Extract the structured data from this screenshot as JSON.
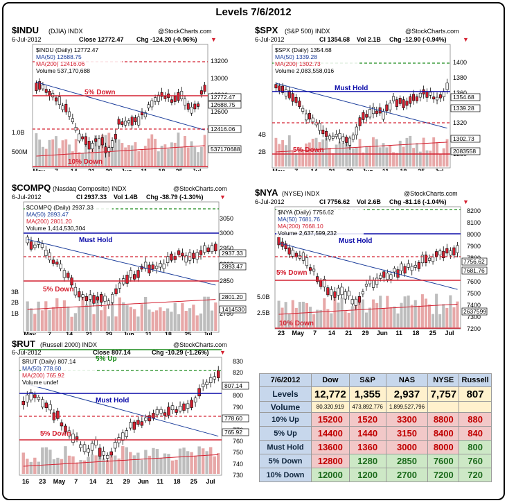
{
  "title": "Levels 7/6/2012",
  "watermark": "@StockCharts.com",
  "colors": {
    "up": "#ffffff",
    "down": "#d42030",
    "ma50": "#1a3c9a",
    "ma200": "#d42030",
    "level_red": "#d42030",
    "level_blue": "#0a0aa8",
    "level_green": "#1a8a1a",
    "volume": "#e7a7a7"
  },
  "charts": {
    "indu": {
      "symbol": "$INDU",
      "name": "(DJIA) INDX",
      "date": "6-Jul-2012",
      "close_label": "Close 12772.47",
      "chg_label": "Chg -124.20 (-0.96%)",
      "legend_main": "$INDU (Daily) 12772.47",
      "legend_ma50": "MA(50) 12688.75",
      "legend_ma200": "MA(200) 12416.06",
      "legend_vol": "Volume 537,170,688",
      "y_ticks": [
        "13200",
        "13000",
        "12800",
        "12600"
      ],
      "vol_ticks": [
        "1.0B",
        "500M"
      ],
      "price_boxes": [
        "12772.47",
        "12688.75",
        "12416.06",
        "537170688"
      ],
      "x_ticks": [
        "May",
        "7",
        "14",
        "21",
        "29",
        "Jun",
        "11",
        "18",
        "25",
        "Jul"
      ],
      "level_labels": [
        "5% Down",
        "10% Down"
      ]
    },
    "spx": {
      "symbol": "$SPX",
      "name": "(S&P 500) INDX",
      "date": "6-Jul-2012",
      "close_label": "Cl 1354.68",
      "vol_label": "Vol 2.1B",
      "chg_label": "Chg -12.90 (-0.94%)",
      "legend_main": "$SPX (Daily) 1354.68",
      "legend_ma50": "MA(50) 1339.28",
      "legend_ma200": "MA(200) 1302.73",
      "legend_vol": "Volume 2,083,558,016",
      "y_ticks": [
        "1400",
        "1380",
        "1360",
        "1340",
        "1320",
        "1280"
      ],
      "vol_ticks": [
        "4B",
        "2B"
      ],
      "price_boxes": [
        "1354.68",
        "1339.28",
        "1302.73",
        "2083558"
      ],
      "x_ticks": [
        "May",
        "7",
        "14",
        "21",
        "29",
        "Jun",
        "11",
        "18",
        "25",
        "Jul"
      ],
      "level_labels": [
        "Must Hold",
        "5% Down"
      ]
    },
    "compq": {
      "symbol": "$COMPQ",
      "name": "(Nasdaq Composite) INDX",
      "date": "6-Jul-2012",
      "close_label": "Cl 2937.33",
      "vol_label": "Vol 1.4B",
      "chg_label": "Chg -38.79 (-1.30%)",
      "legend_main": "$COMPQ (Daily) 2937.33",
      "legend_ma50": "MA(50) 2893.47",
      "legend_ma200": "MA(200) 2801.20",
      "legend_vol": "Volume 1,414,530,304",
      "y_ticks": [
        "3050",
        "3000",
        "2950",
        "2900",
        "2850",
        "2750"
      ],
      "vol_ticks": [
        "3B",
        "2B",
        "1B"
      ],
      "price_boxes": [
        "2937.33",
        "2893.47",
        "2801.20",
        "1414530"
      ],
      "x_ticks": [
        "May",
        "7",
        "14",
        "21",
        "29",
        "Jun",
        "11",
        "18",
        "25",
        "Jul"
      ],
      "level_labels": [
        "Must Hold",
        "5% Down"
      ]
    },
    "nya": {
      "symbol": "$NYA",
      "name": "(NYSE) INDX",
      "date": "6-Jul-2012",
      "close_label": "Cl 7756.62",
      "vol_label": "Vol 2.6B",
      "chg_label": "Chg -81.16 (-1.04%)",
      "legend_main": "$NYA (Daily) 7756.62",
      "legend_ma50": "MA(50) 7681.76",
      "legend_ma200": "MA(200) 7668.10",
      "legend_vol": "Volume 2,637,599,232",
      "y_ticks": [
        "8200",
        "8100",
        "8000",
        "7900",
        "7800",
        "7700",
        "7600",
        "7500",
        "7400",
        "7300",
        "7200"
      ],
      "vol_ticks": [
        "5.0B",
        "2.5B"
      ],
      "price_boxes": [
        "7756.62",
        "7681.76",
        "2637599"
      ],
      "x_ticks": [
        "23",
        "May",
        "7",
        "14",
        "21",
        "29",
        "Jun",
        "11",
        "18",
        "25",
        "Jul"
      ],
      "level_labels": [
        "Must Hold",
        "5% Down",
        "10% Down"
      ]
    },
    "rut": {
      "symbol": "$RUT",
      "name": "(Russell 2000) INDX",
      "date": "6-Jul-2012",
      "close_label": "Close 807.14",
      "chg_label": "Chg -10.29 (-1.26%)",
      "legend_main": "$RUT (Daily) 807.14",
      "legend_ma50": "MA(50) 778.60",
      "legend_ma200": "MA(200) 765.92",
      "legend_vol": "Volume undef",
      "y_ticks": [
        "830",
        "820",
        "810",
        "800",
        "790",
        "780",
        "770",
        "760",
        "750",
        "740",
        "730"
      ],
      "price_boxes": [
        "807.14",
        "778.60",
        "765.92"
      ],
      "x_ticks": [
        "16",
        "23",
        "May",
        "7",
        "14",
        "21",
        "29",
        "Jun",
        "11",
        "18",
        "25",
        "Jul"
      ],
      "level_labels": [
        "5% Up",
        "Must Hold",
        "5% Down"
      ]
    }
  },
  "table": {
    "date_header": "7/6/2012",
    "columns": [
      "Dow",
      "S&P",
      "NAS",
      "NYSE",
      "Russell"
    ],
    "levels_label": "Levels",
    "levels": [
      "12,772",
      "1,355",
      "2,937",
      "7,757",
      "807"
    ],
    "volume_label": "Volume",
    "volumes": [
      "80,320,919",
      "473,892,776",
      "1,899,527,796",
      "",
      ""
    ],
    "rows": [
      {
        "label": "10% Up",
        "values": [
          "15200",
          "1520",
          "3300",
          "8800",
          "880"
        ],
        "styles": [
          "red",
          "red",
          "red",
          "red",
          "red"
        ]
      },
      {
        "label": "5% Up",
        "values": [
          "14400",
          "1440",
          "3150",
          "8400",
          "840"
        ],
        "styles": [
          "red",
          "red",
          "red",
          "red",
          "red"
        ]
      },
      {
        "label": "Must Hold",
        "values": [
          "13600",
          "1360",
          "3000",
          "8000",
          "800"
        ],
        "styles": [
          "red",
          "red",
          "red",
          "red",
          "green"
        ]
      },
      {
        "label": "5% Down",
        "values": [
          "12800",
          "1280",
          "2850",
          "7600",
          "760"
        ],
        "styles": [
          "red",
          "green",
          "green",
          "green",
          "green"
        ]
      },
      {
        "label": "10% Down",
        "values": [
          "12000",
          "1200",
          "2700",
          "7200",
          "720"
        ],
        "styles": [
          "green",
          "green",
          "green",
          "green",
          "green"
        ]
      }
    ]
  }
}
